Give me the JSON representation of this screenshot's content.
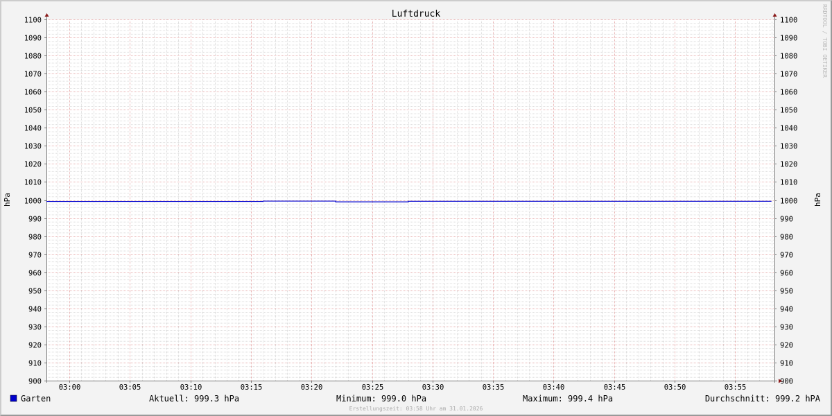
{
  "chart_data": {
    "type": "line",
    "title": "Luftdruck",
    "ylabel": "hPa",
    "ylim": [
      900,
      1100
    ],
    "yticks": [
      900,
      910,
      920,
      930,
      940,
      950,
      960,
      970,
      980,
      990,
      1000,
      1010,
      1020,
      1030,
      1040,
      1050,
      1060,
      1070,
      1080,
      1090,
      1100
    ],
    "xlim": [
      "02:58",
      "03:58"
    ],
    "xticks": [
      "03:00",
      "03:05",
      "03:10",
      "03:15",
      "03:20",
      "03:25",
      "03:30",
      "03:35",
      "03:40",
      "03:45",
      "03:50",
      "03:55"
    ],
    "grid": true,
    "series": [
      {
        "name": "Garten",
        "color": "#0000cc",
        "step": true,
        "points": [
          [
            "02:58",
            999.2
          ],
          [
            "03:16",
            999.4
          ],
          [
            "03:22",
            999.0
          ],
          [
            "03:28",
            999.3
          ],
          [
            "03:58",
            999.3
          ]
        ]
      }
    ],
    "legend": {
      "swatch_color": "#0000cc",
      "name": "Garten",
      "current": "Aktuell: 999.3 hPa",
      "minimum": "Minimum: 999.0 hPa",
      "maximum": "Maximum: 999.4 hPa",
      "average": "Durchschnitt: 999.2 hPA"
    },
    "footer": "Erstellungszeit: 03:58 Uhr am 31.01.2026",
    "watermark": "RRDTOOL / TOBI OETIKER"
  }
}
